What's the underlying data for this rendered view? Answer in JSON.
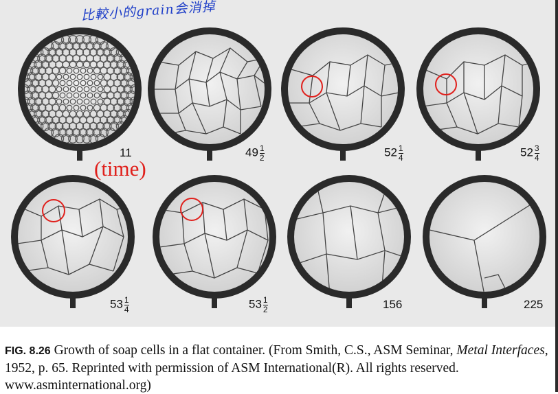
{
  "annotations": {
    "handwritten_note": "比較小的grain会消掉",
    "time_label": "(time)"
  },
  "figure": {
    "panels": [
      {
        "whole": "11",
        "num": "",
        "den": ""
      },
      {
        "whole": "49",
        "num": "1",
        "den": "2"
      },
      {
        "whole": "52",
        "num": "1",
        "den": "4"
      },
      {
        "whole": "52",
        "num": "3",
        "den": "4"
      },
      {
        "whole": "53",
        "num": "1",
        "den": "4"
      },
      {
        "whole": "53",
        "num": "1",
        "den": "2"
      },
      {
        "whole": "156",
        "num": "",
        "den": ""
      },
      {
        "whole": "225",
        "num": "",
        "den": ""
      }
    ],
    "highlight_color": "#e0201c"
  },
  "caption": {
    "fig_number": "FIG. 8.26",
    "text_before": "Growth of soap cells in a flat container. (From Smith, C.S., ASM Seminar, ",
    "italic": "Metal Interfaces",
    "text_after": ", 1952, p. 65. Reprinted with permission of ASM International(R). All rights reserved. www.asminternational.org)"
  }
}
